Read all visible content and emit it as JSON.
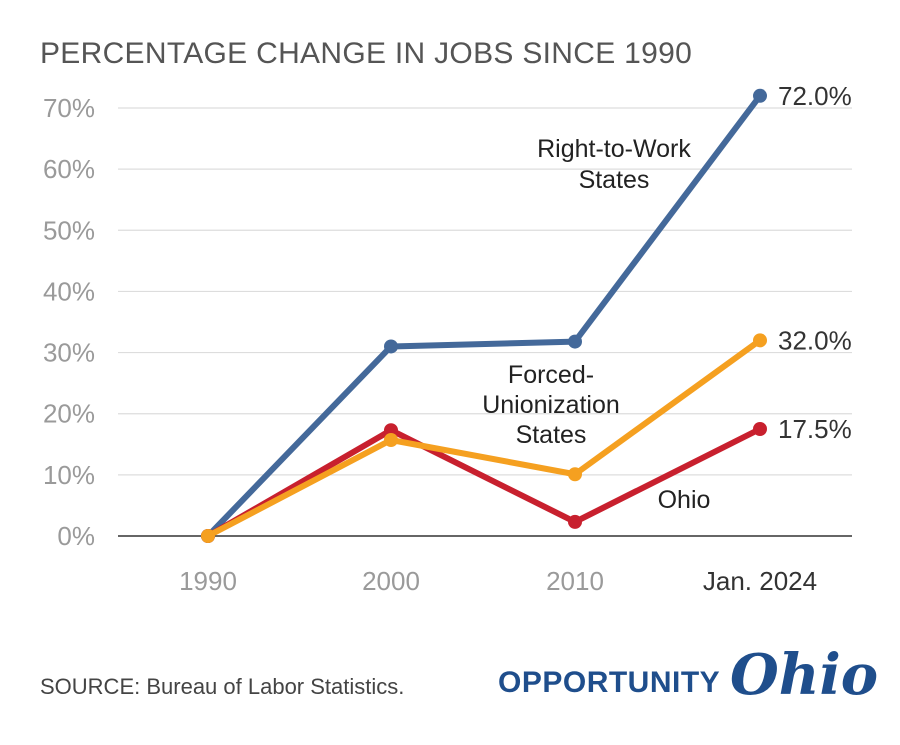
{
  "title": "PERCENTAGE CHANGE IN JOBS SINCE 1990",
  "source": "SOURCE: Bureau of Labor Statistics.",
  "logo": {
    "word": "OPPORTUNITY",
    "script": "Ohio"
  },
  "colors": {
    "right_to_work": "#44699a",
    "forced_unionization": "#f5a020",
    "ohio": "#c8202e",
    "grid": "#dddddd",
    "axis": "#333333",
    "logo": "#1f4e8c"
  },
  "chart_data": {
    "type": "line",
    "title": "PERCENTAGE CHANGE IN JOBS SINCE 1990",
    "xlabel": "",
    "ylabel": "",
    "x": [
      "1990",
      "2000",
      "2010",
      "Jan. 2024"
    ],
    "ylim": [
      0,
      70
    ],
    "yticks": [
      "0%",
      "10%",
      "20%",
      "30%",
      "40%",
      "50%",
      "60%",
      "70%"
    ],
    "grid": true,
    "series": [
      {
        "key": "right_to_work",
        "label_lines": [
          "Right-to-Work",
          "States"
        ],
        "values": [
          0,
          31,
          31.8,
          72.0
        ],
        "end_label": "72.0%"
      },
      {
        "key": "ohio",
        "label_lines": [
          "Ohio"
        ],
        "values": [
          0,
          17.3,
          2.3,
          17.5
        ],
        "end_label": "17.5%"
      },
      {
        "key": "forced_unionization",
        "label_lines": [
          "Forced-",
          "Unionization",
          "States"
        ],
        "values": [
          0,
          15.7,
          10.1,
          32.0
        ],
        "end_label": "32.0%"
      }
    ]
  }
}
